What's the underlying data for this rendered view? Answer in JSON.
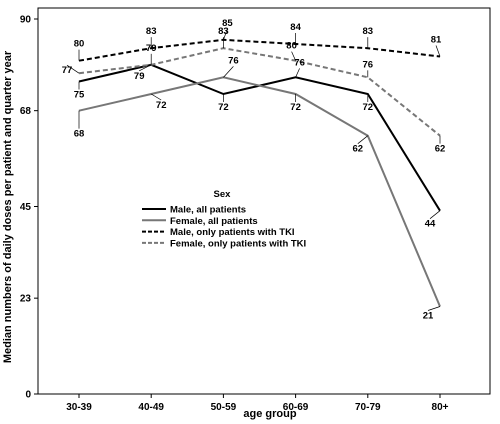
{
  "chart_data": {
    "type": "line",
    "title": "",
    "xlabel": "age group",
    "ylabel": "Median numbers of daily doses per patient and quarter year",
    "categories": [
      "30-39",
      "40-49",
      "50-59",
      "60-69",
      "70-79",
      "80+"
    ],
    "ylim": [
      0,
      90
    ],
    "yticks": [
      "0",
      "23",
      "45",
      "68",
      "90"
    ],
    "grid": false,
    "legend": {
      "title": "Sex",
      "position": "center-left"
    },
    "series": [
      {
        "name": "Male, all patients",
        "values": [
          75,
          79,
          72,
          76,
          72,
          44
        ],
        "labels": [
          "75",
          "79",
          "72",
          "76",
          "72",
          "44"
        ],
        "color": "#000000",
        "dash": "solid"
      },
      {
        "name": "Female, all patients",
        "values": [
          68,
          72,
          76,
          72,
          62,
          21
        ],
        "labels": [
          "68",
          "72",
          "76",
          "72",
          "62",
          "21"
        ],
        "color": "#777777",
        "dash": "solid"
      },
      {
        "name": "Male, only patients with TKI",
        "values": [
          80,
          83,
          85,
          84,
          83,
          81
        ],
        "labels": [
          "80",
          "83",
          "85",
          "84",
          "83",
          "81"
        ],
        "color": "#000000",
        "dash": "dashed"
      },
      {
        "name": "Female, only patients with TKI",
        "values": [
          77,
          79,
          83,
          80,
          76,
          62
        ],
        "labels": [
          "77",
          "79",
          "83",
          "80",
          "76",
          "62"
        ],
        "color": "#777777",
        "dash": "dashed"
      }
    ]
  }
}
